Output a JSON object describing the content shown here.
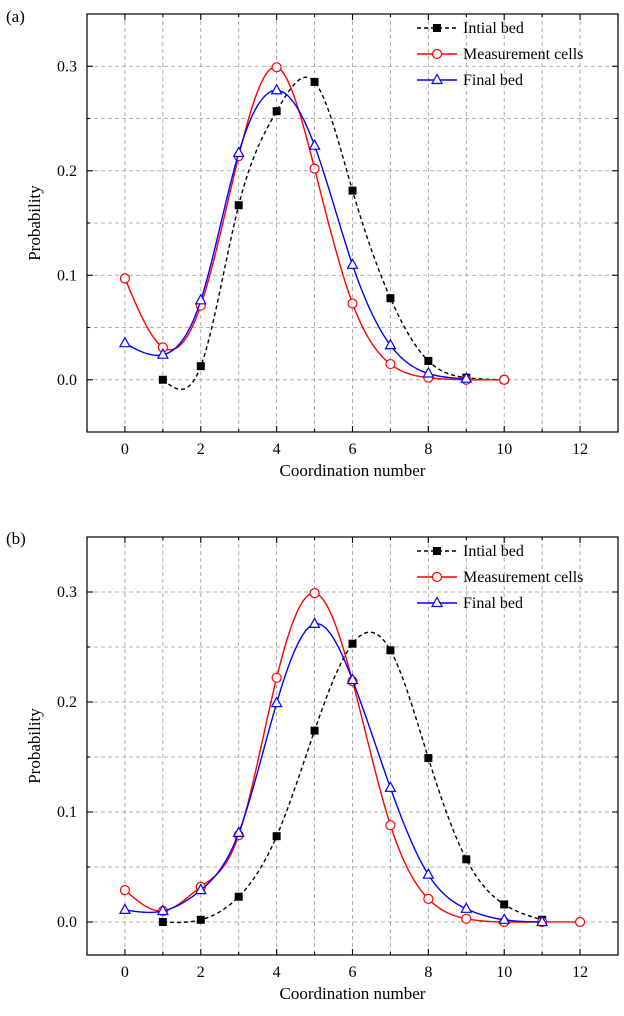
{
  "chart_data": [
    {
      "type": "line",
      "panel_label": "(a)",
      "xlabel": "Coordination number",
      "ylabel": "Probability",
      "xlim": [
        -1,
        13
      ],
      "ylim": [
        -0.05,
        0.35
      ],
      "xticks": [
        0,
        2,
        4,
        6,
        8,
        10,
        12
      ],
      "xtick_labels": [
        "0",
        "2",
        "4",
        "6",
        "8",
        "10",
        "12"
      ],
      "yticks": [
        0.0,
        0.1,
        0.2,
        0.3
      ],
      "ytick_labels": [
        "0.0",
        "0.1",
        "0.2",
        "0.3"
      ],
      "grid": true,
      "legend_position": "top-right",
      "series": [
        {
          "name": "Intial bed",
          "color": "#000000",
          "dash": "dashed",
          "marker": "filled-square",
          "x": [
            1,
            2,
            3,
            4,
            5,
            6,
            7,
            8,
            9,
            10
          ],
          "y": [
            0.0,
            0.013,
            0.167,
            0.257,
            0.285,
            0.181,
            0.078,
            0.018,
            0.002,
            0.0
          ]
        },
        {
          "name": "Measurement cells",
          "color": "#ff0000",
          "dash": "solid",
          "marker": "open-circle",
          "x": [
            0,
            1,
            2,
            3,
            4,
            5,
            6,
            7,
            8,
            9,
            10
          ],
          "y": [
            0.097,
            0.031,
            0.071,
            0.214,
            0.299,
            0.202,
            0.073,
            0.015,
            0.002,
            0.0,
            0.0
          ]
        },
        {
          "name": "Final bed",
          "color": "#0000ff",
          "dash": "solid",
          "marker": "open-triangle",
          "x": [
            0,
            1,
            2,
            3,
            4,
            5,
            6,
            7,
            8,
            9
          ],
          "y": [
            0.035,
            0.024,
            0.076,
            0.217,
            0.277,
            0.224,
            0.11,
            0.033,
            0.006,
            0.001
          ]
        }
      ]
    },
    {
      "type": "line",
      "panel_label": "(b)",
      "xlabel": "Coordination number",
      "ylabel": "Probability",
      "xlim": [
        -1,
        13
      ],
      "ylim": [
        -0.03,
        0.35
      ],
      "xticks": [
        0,
        2,
        4,
        6,
        8,
        10,
        12
      ],
      "xtick_labels": [
        "0",
        "2",
        "4",
        "6",
        "8",
        "10",
        "12"
      ],
      "yticks": [
        0.0,
        0.1,
        0.2,
        0.3
      ],
      "ytick_labels": [
        "0.0",
        "0.1",
        "0.2",
        "0.3"
      ],
      "grid": true,
      "legend_position": "top-right",
      "series": [
        {
          "name": "Intial bed",
          "color": "#000000",
          "dash": "dashed",
          "marker": "filled-square",
          "x": [
            1,
            2,
            3,
            4,
            5,
            6,
            7,
            8,
            9,
            10,
            11
          ],
          "y": [
            0.0,
            0.002,
            0.023,
            0.078,
            0.174,
            0.253,
            0.247,
            0.149,
            0.057,
            0.016,
            0.002
          ]
        },
        {
          "name": "Measurement cells",
          "color": "#ff0000",
          "dash": "solid",
          "marker": "open-circle",
          "x": [
            0,
            1,
            2,
            3,
            4,
            5,
            6,
            7,
            8,
            9,
            10,
            11,
            12
          ],
          "y": [
            0.029,
            0.01,
            0.032,
            0.079,
            0.222,
            0.299,
            0.219,
            0.088,
            0.021,
            0.003,
            0.0,
            0.0,
            0.0
          ]
        },
        {
          "name": "Final bed",
          "color": "#0000ff",
          "dash": "solid",
          "marker": "open-triangle",
          "x": [
            0,
            1,
            2,
            3,
            4,
            5,
            6,
            7,
            8,
            9,
            10,
            11
          ],
          "y": [
            0.011,
            0.01,
            0.029,
            0.081,
            0.199,
            0.271,
            0.22,
            0.122,
            0.043,
            0.012,
            0.002,
            0.0
          ]
        }
      ]
    }
  ]
}
